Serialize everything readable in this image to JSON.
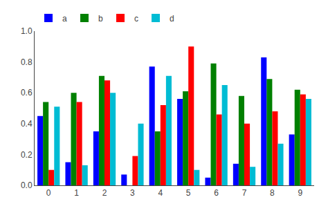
{
  "chart_data": {
    "type": "bar",
    "categories": [
      "0",
      "1",
      "2",
      "3",
      "4",
      "5",
      "6",
      "7",
      "8",
      "9"
    ],
    "series": [
      {
        "name": "a",
        "color": "#0000ff",
        "values": [
          0.45,
          0.15,
          0.35,
          0.07,
          0.77,
          0.56,
          0.05,
          0.14,
          0.83,
          0.33
        ]
      },
      {
        "name": "b",
        "color": "#008000",
        "values": [
          0.54,
          0.6,
          0.71,
          0.0,
          0.35,
          0.61,
          0.79,
          0.58,
          0.69,
          0.62
        ]
      },
      {
        "name": "c",
        "color": "#ff0000",
        "values": [
          0.1,
          0.54,
          0.68,
          0.19,
          0.52,
          0.9,
          0.46,
          0.4,
          0.48,
          0.59
        ]
      },
      {
        "name": "d",
        "color": "#00bcd4",
        "values": [
          0.51,
          0.13,
          0.6,
          0.4,
          0.71,
          0.1,
          0.65,
          0.12,
          0.27,
          0.56
        ]
      }
    ],
    "ylim": [
      0.0,
      1.0
    ],
    "yticks": [
      {
        "value": 0.0,
        "label": "0.0"
      },
      0.2,
      0.4,
      0.6,
      0.8,
      {
        "value": 1.0,
        "label": "1.0"
      }
    ],
    "grid": false,
    "legend": "upper left"
  }
}
